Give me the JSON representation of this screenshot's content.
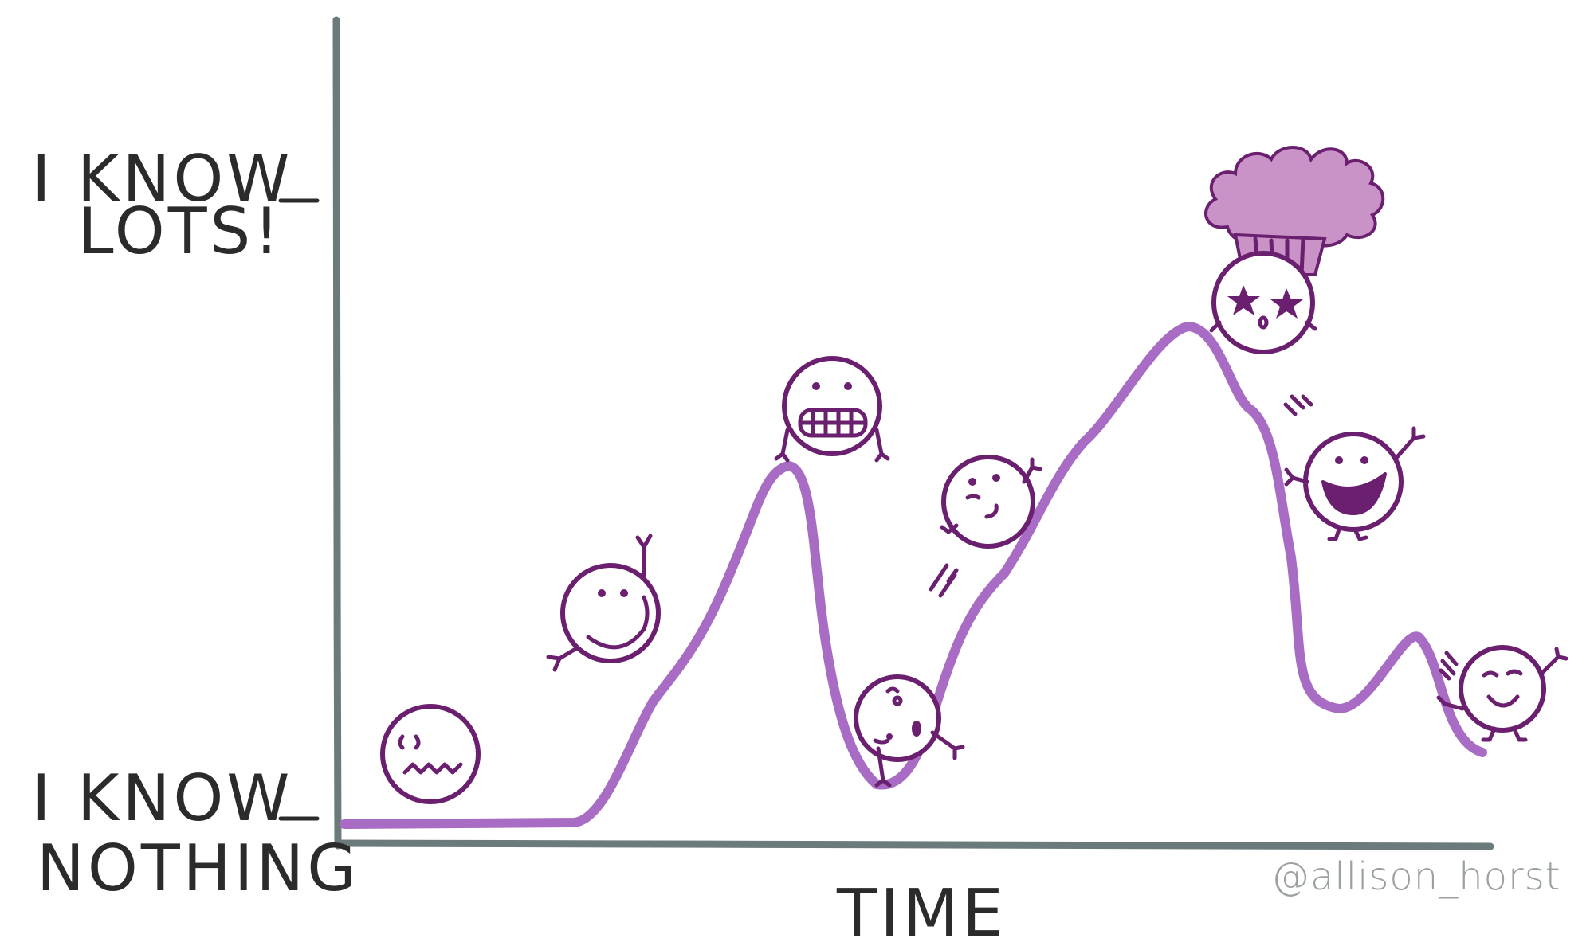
{
  "labels": {
    "y_high_line1": "I KNOW",
    "y_high_line2": "LOTS!",
    "y_low_line1": "I KNOW",
    "y_low_line2": "NOTHING",
    "x_axis": "TIME",
    "credit": "@allison_horst"
  },
  "colors": {
    "axis": "#6b7b7b",
    "curve": "#a86cc4",
    "ink": "#6a1f6f",
    "brain": "#c993c8",
    "text": "#2b2b2b",
    "credit": "#9aa0a0"
  },
  "characters": [
    {
      "name": "worried-face",
      "expression": "worried"
    },
    {
      "name": "smiling-face",
      "expression": "smile"
    },
    {
      "name": "grimacing-face",
      "expression": "grimace"
    },
    {
      "name": "dizzy-face",
      "expression": "dizzy"
    },
    {
      "name": "winking-face",
      "expression": "wink"
    },
    {
      "name": "starstruck-brain-face",
      "expression": "starstruck"
    },
    {
      "name": "laughing-face",
      "expression": "laugh"
    },
    {
      "name": "content-face",
      "expression": "content"
    }
  ]
}
